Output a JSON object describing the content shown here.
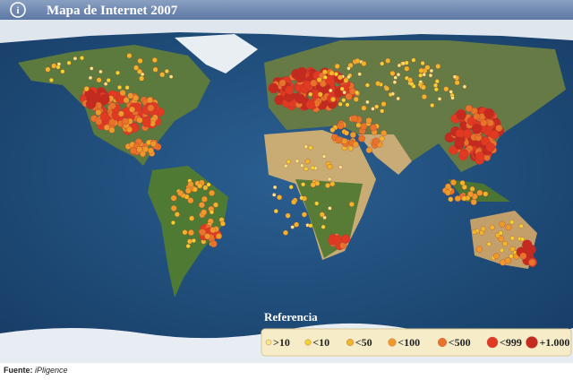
{
  "header": {
    "title": "Mapa de Internet 2007"
  },
  "legend": {
    "title": "Referencia",
    "items": [
      ">10",
      "<10",
      "<50",
      "<100",
      "<500",
      "<999",
      "+1.000"
    ]
  },
  "footer": {
    "label": "Fuente:",
    "source": "iPligence"
  }
}
